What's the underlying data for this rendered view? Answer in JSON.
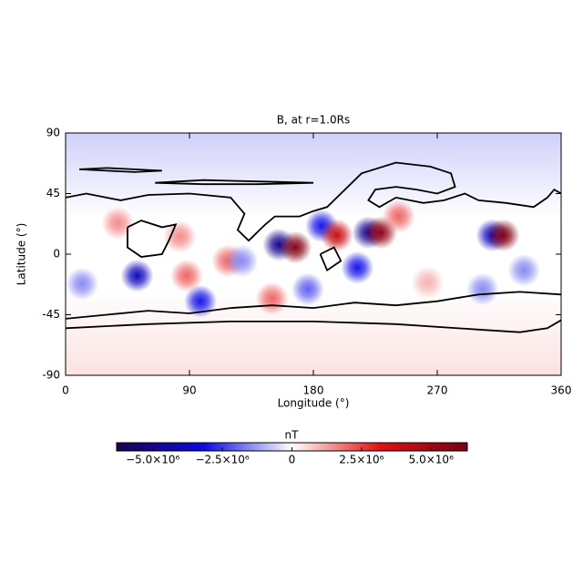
{
  "chart_data": {
    "type": "heatmap",
    "title": "B, at r=1.0Rs",
    "x_label": "Longitude (°)",
    "y_label": "Latitude (°)",
    "xlim": [
      0,
      360
    ],
    "xticks": [
      0,
      90,
      180,
      270,
      360
    ],
    "ylim": [
      -90,
      90
    ],
    "yticks": [
      -90,
      -45,
      0,
      45,
      90
    ],
    "colorbar_label": "nT",
    "clim": [
      -6300000,
      6300000
    ],
    "cticks": [
      {
        "value": -5000000,
        "label": "−5.0×10⁶"
      },
      {
        "value": -2500000,
        "label": "−2.5×10⁶"
      },
      0,
      {
        "value": 2500000,
        "label": "2.5×10⁶"
      },
      {
        "value": 5000000,
        "label": "5.0×10⁶"
      }
    ],
    "colormap": [
      "#1e0050",
      "#0a0ae6",
      "#ffffff",
      "#e61010",
      "#780014"
    ],
    "north_value": -600000,
    "south_value": 400000,
    "blobs": {
      "lon": [
        52,
        98,
        88,
        83,
        38,
        12,
        118,
        150,
        155,
        167,
        186,
        197,
        212,
        220,
        229,
        242,
        176,
        310,
        318,
        333,
        303,
        128,
        263
      ],
      "lat": [
        -16,
        -35,
        -16,
        13,
        23,
        -22,
        -5,
        -33,
        7,
        5,
        21,
        14,
        -10,
        16,
        16,
        28,
        -26,
        14,
        14,
        -12,
        -26,
        -5,
        -21
      ],
      "value": [
        -4000000,
        -3000000,
        2000000,
        1500000,
        1500000,
        -1500000,
        2000000,
        2000000,
        -5000000,
        6000000,
        -3000000,
        4000000,
        -3000000,
        -5000000,
        5500000,
        2000000,
        -2000000,
        -4000000,
        6000000,
        -1500000,
        -1500000,
        -1500000,
        1000000
      ]
    },
    "contours": [
      {
        "lon": [
          0,
          15,
          40,
          60,
          90,
          120,
          130,
          125,
          133,
          145,
          152,
          170,
          180,
          190,
          200,
          215,
          240,
          265,
          280,
          283,
          270,
          255,
          240,
          225,
          220,
          228,
          240,
          260,
          275,
          290,
          300,
          320,
          340,
          350,
          355,
          360
        ],
        "lat": [
          42,
          45,
          40,
          44,
          45,
          42,
          30,
          18,
          10,
          22,
          28,
          28,
          32,
          35,
          45,
          60,
          68,
          65,
          60,
          50,
          45,
          48,
          50,
          48,
          40,
          35,
          42,
          38,
          40,
          45,
          40,
          38,
          35,
          42,
          48,
          45
        ]
      },
      {
        "lon": [
          0,
          30,
          60,
          90,
          120,
          150,
          180,
          210,
          240,
          270,
          300,
          330,
          360
        ],
        "lat": [
          -48,
          -45,
          -42,
          -44,
          -40,
          -38,
          -40,
          -36,
          -38,
          -35,
          -30,
          -28,
          -30
        ]
      },
      {
        "lon": [
          0,
          60,
          120,
          180,
          240,
          300,
          330,
          350,
          360
        ],
        "lat": [
          -55,
          -52,
          -50,
          -50,
          -52,
          -56,
          -58,
          -55,
          -49
        ]
      },
      {
        "lon": [
          10,
          30,
          50,
          70,
          50,
          30,
          10
        ],
        "lat": [
          63,
          64,
          63,
          62,
          61,
          62,
          63
        ]
      },
      {
        "lon": [
          65,
          100,
          140,
          180,
          140,
          100,
          65
        ],
        "lat": [
          53,
          55,
          54,
          53,
          52,
          52,
          53
        ]
      },
      {
        "lon": [
          45,
          55,
          70,
          80,
          75,
          70,
          55,
          45,
          45
        ],
        "lat": [
          20,
          25,
          20,
          22,
          10,
          0,
          -2,
          5,
          20
        ]
      },
      {
        "lon": [
          185,
          195,
          200,
          190,
          185
        ],
        "lat": [
          0,
          5,
          -5,
          -12,
          0
        ]
      }
    ]
  }
}
